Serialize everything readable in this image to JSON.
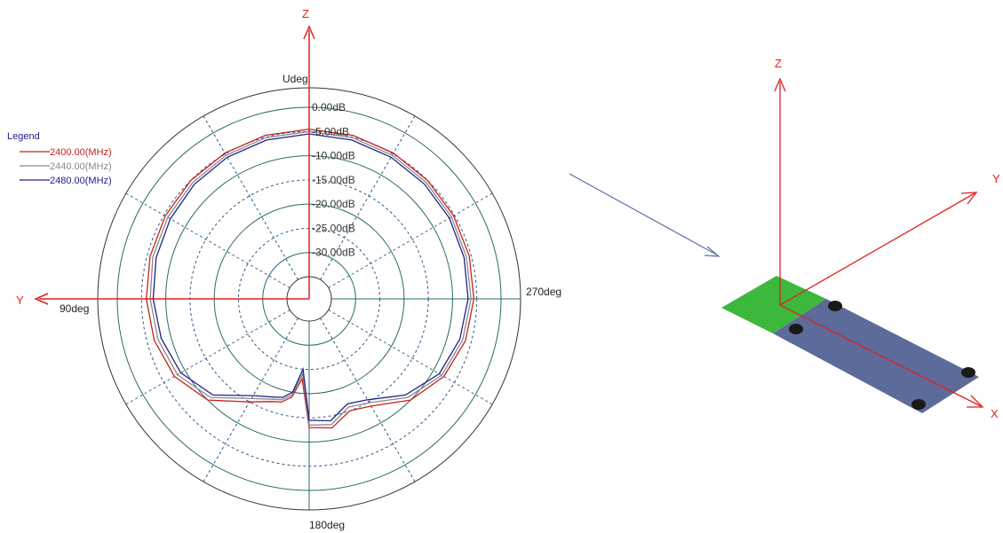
{
  "chart_data": {
    "type": "polar-line",
    "unit_label": "Udeg",
    "radial_ticks": [
      "0.00dB",
      "-5.00dB",
      "-10.00dB",
      "-15.00dB",
      "-20.00dB",
      "-25.00dB",
      "-30.00dB"
    ],
    "radial_values": [
      0,
      -5,
      -10,
      -15,
      -20,
      -25,
      -30
    ],
    "rlim": [
      -35,
      0
    ],
    "angle_labels": {
      "left": "90deg",
      "right": "270deg",
      "bottom": "180deg"
    },
    "legend_title": "Legend",
    "legend_position": "top-left",
    "grid": true,
    "theta_deg": [
      0,
      15,
      30,
      45,
      60,
      75,
      90,
      105,
      120,
      135,
      150,
      160,
      165,
      170,
      175,
      180,
      190,
      200,
      210,
      225,
      240,
      255,
      270,
      285,
      300,
      315,
      330,
      345,
      360
    ],
    "series": [
      {
        "name": "2400.00(MHz)",
        "color": "#c82020",
        "values": [
          -4.5,
          -4.6,
          -4.8,
          -5.0,
          -5.3,
          -5.6,
          -6.0,
          -6.5,
          -7.5,
          -10.0,
          -15.0,
          -17.0,
          -17.5,
          -19.0,
          -23.0,
          -13.0,
          -12.5,
          -15.0,
          -14.0,
          -10.0,
          -7.5,
          -6.2,
          -5.6,
          -5.4,
          -5.2,
          -5.0,
          -4.8,
          -4.6,
          -4.5
        ]
      },
      {
        "name": "2440.00(MHz)",
        "color": "#8a8a8a",
        "values": [
          -5.0,
          -5.1,
          -5.3,
          -5.6,
          -5.9,
          -6.2,
          -6.8,
          -7.3,
          -8.2,
          -10.8,
          -15.8,
          -17.5,
          -18.0,
          -19.5,
          -24.0,
          -13.5,
          -13.2,
          -15.8,
          -14.8,
          -10.8,
          -8.0,
          -6.8,
          -6.2,
          -6.0,
          -5.7,
          -5.5,
          -5.3,
          -5.1,
          -5.0
        ]
      },
      {
        "name": "2480.00(MHz)",
        "color": "#20208a",
        "values": [
          -5.5,
          -5.6,
          -5.8,
          -6.1,
          -6.5,
          -6.9,
          -7.4,
          -8.0,
          -9.0,
          -11.5,
          -16.5,
          -18.0,
          -18.5,
          -20.0,
          -25.0,
          -14.5,
          -14.0,
          -16.5,
          -15.5,
          -11.5,
          -8.6,
          -7.4,
          -6.8,
          -6.5,
          -6.2,
          -6.0,
          -5.8,
          -5.6,
          -5.5
        ]
      }
    ]
  },
  "axes_overlay": {
    "z_label": "Z",
    "y_label": "Y"
  },
  "board_diagram": {
    "z_label": "Z",
    "y_label": "Y",
    "x_label": "X",
    "antenna_color": "#3cb83c",
    "board_color": "#5c6b9a",
    "axis_color": "#e02020",
    "arrow_color": "#5a6ea8"
  }
}
